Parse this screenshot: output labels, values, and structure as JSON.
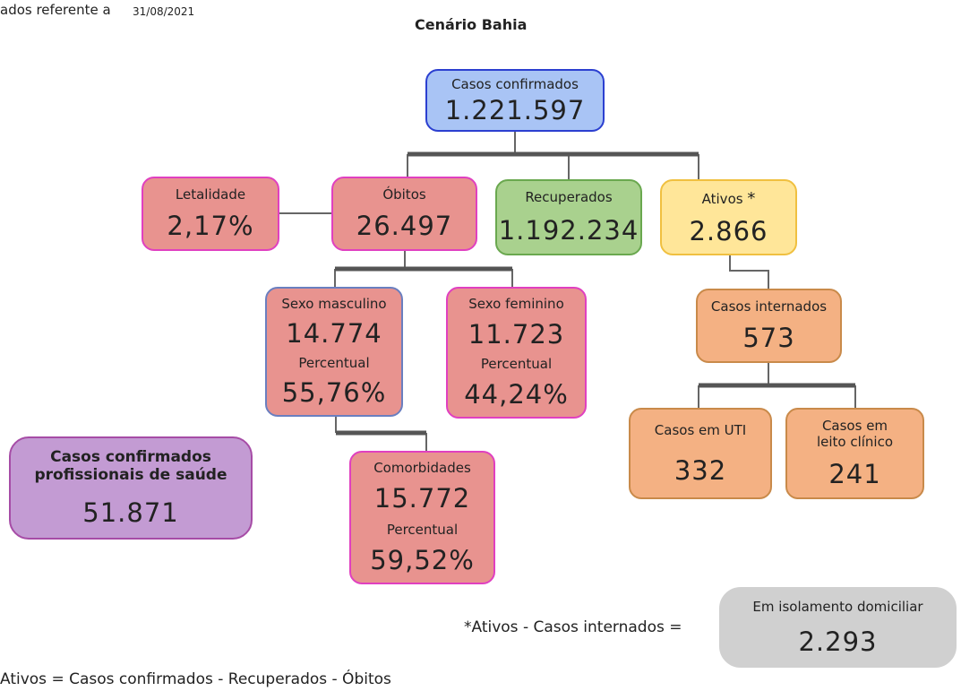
{
  "header": {
    "prefix": "ados referente a",
    "date": "31/08/2021",
    "title": "Cenário Bahia"
  },
  "nodes": {
    "confirmados": {
      "label": "Casos confirmados",
      "value": "1.221.597"
    },
    "letalidade": {
      "label": "Letalidade",
      "value": "2,17%"
    },
    "obitos": {
      "label": "Óbitos",
      "value": "26.497"
    },
    "recuperados": {
      "label": "Recuperados",
      "value": "1.192.234"
    },
    "ativos": {
      "label": "Ativos",
      "mark": "*",
      "value": "2.866"
    },
    "masculino": {
      "label": "Sexo masculino",
      "value": "14.774",
      "pct_label": "Percentual",
      "pct": "55,76%"
    },
    "feminino": {
      "label": "Sexo feminino",
      "value": "11.723",
      "pct_label": "Percentual",
      "pct": "44,24%"
    },
    "comorbidades": {
      "label": "Comorbidades",
      "value": "15.772",
      "pct_label": "Percentual",
      "pct": "59,52%"
    },
    "internados": {
      "label": "Casos internados",
      "value": "573"
    },
    "uti": {
      "label": "Casos em UTI",
      "value": "332"
    },
    "leito": {
      "label": "Casos em leito clínico",
      "value": "241"
    },
    "profissionais": {
      "label": "Casos confirmados profissionais de saúde",
      "value": "51.871"
    },
    "isolamento": {
      "label": "Em isolamento domiciliar",
      "value": "2.293"
    }
  },
  "notes": {
    "isolamento_formula": "*Ativos - Casos internados =",
    "ativos_formula": "Ativos = Casos confirmados - Recuperados - Óbitos"
  }
}
